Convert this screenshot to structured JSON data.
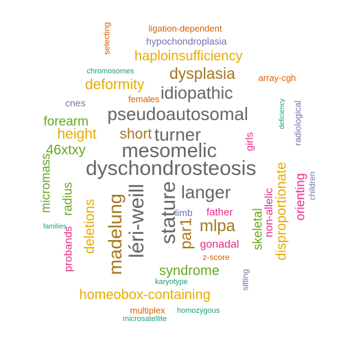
{
  "words": [
    {
      "text": "dyschondrosteosis",
      "color": "#666666",
      "rotated": false
    },
    {
      "text": "mesomelic",
      "color": "#666666",
      "rotated": false
    },
    {
      "text": "pseudoautosomal",
      "color": "#666666",
      "rotated": false
    },
    {
      "text": "turner",
      "color": "#666666",
      "rotated": false
    },
    {
      "text": "langer",
      "color": "#666666",
      "rotated": false
    },
    {
      "text": "idiopathic",
      "color": "#666666",
      "rotated": false
    },
    {
      "text": "stature",
      "color": "#666666",
      "rotated": true
    },
    {
      "text": "léri-weill",
      "color": "#666666",
      "rotated": true
    },
    {
      "text": "madelung",
      "color": "#a6761d",
      "rotated": true
    },
    {
      "text": "dysplasia",
      "color": "#a6761d",
      "rotated": false
    },
    {
      "text": "short",
      "color": "#a6761d",
      "rotated": false
    },
    {
      "text": "mlpa",
      "color": "#a6761d",
      "rotated": false
    },
    {
      "text": "par1",
      "color": "#a6761d",
      "rotated": true
    },
    {
      "text": "deformity",
      "color": "#e6ab02",
      "rotated": false
    },
    {
      "text": "haploinsufficiency",
      "color": "#e6ab02",
      "rotated": false
    },
    {
      "text": "height",
      "color": "#e6ab02",
      "rotated": false
    },
    {
      "text": "homeobox-containing",
      "color": "#e6ab02",
      "rotated": false
    },
    {
      "text": "deletions",
      "color": "#e6ab02",
      "rotated": true
    },
    {
      "text": "disproportionate",
      "color": "#e6ab02",
      "rotated": true
    },
    {
      "text": "46xtxy",
      "color": "#66a61e",
      "rotated": false
    },
    {
      "text": "forearm",
      "color": "#66a61e",
      "rotated": false
    },
    {
      "text": "syndrome",
      "color": "#66a61e",
      "rotated": false
    },
    {
      "text": "radius",
      "color": "#66a61e",
      "rotated": true
    },
    {
      "text": "micromass",
      "color": "#66a61e",
      "rotated": true
    },
    {
      "text": "skeletal",
      "color": "#66a61e",
      "rotated": true
    },
    {
      "text": "non-allelic",
      "color": "#e7298a",
      "rotated": true
    },
    {
      "text": "orienting",
      "color": "#e7298a",
      "rotated": true
    },
    {
      "text": "gonadal",
      "color": "#e7298a",
      "rotated": false
    },
    {
      "text": "father",
      "color": "#e7298a",
      "rotated": false
    },
    {
      "text": "girls",
      "color": "#e7298a",
      "rotated": true
    },
    {
      "text": "probands",
      "color": "#e7298a",
      "rotated": true
    },
    {
      "text": "females",
      "color": "#d95f02",
      "rotated": false
    },
    {
      "text": "array-cgh",
      "color": "#d95f02",
      "rotated": false
    },
    {
      "text": "ligation-dependent",
      "color": "#d95f02",
      "rotated": false
    },
    {
      "text": "selecting",
      "color": "#d95f02",
      "rotated": true
    },
    {
      "text": "multiplex",
      "color": "#d95f02",
      "rotated": false
    },
    {
      "text": "z-score",
      "color": "#d95f02",
      "rotated": false
    },
    {
      "text": "hypochondroplasia",
      "color": "#7570b3",
      "rotated": false
    },
    {
      "text": "cnes",
      "color": "#7570b3",
      "rotated": false
    },
    {
      "text": "limb",
      "color": "#7570b3",
      "rotated": false
    },
    {
      "text": "radiological",
      "color": "#7570b3",
      "rotated": true
    },
    {
      "text": "children",
      "color": "#7570b3",
      "rotated": true
    },
    {
      "text": "sitting",
      "color": "#7570b3",
      "rotated": true
    },
    {
      "text": "chromosomes",
      "color": "#1b9e77",
      "rotated": false
    },
    {
      "text": "deficiency",
      "color": "#1b9e77",
      "rotated": true
    },
    {
      "text": "families",
      "color": "#1b9e77",
      "rotated": false
    },
    {
      "text": "karyotype",
      "color": "#1b9e77",
      "rotated": false
    },
    {
      "text": "homozygous",
      "color": "#1b9e77",
      "rotated": false
    },
    {
      "text": "microsatellite",
      "color": "#1b9e77",
      "rotated": false
    }
  ]
}
